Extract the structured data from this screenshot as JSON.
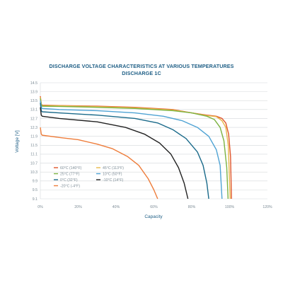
{
  "chart_data": {
    "type": "line",
    "title": "DISCHARGE VOLTAGE CHARACTERISTICS AT VARIOUS TEMPERATURES",
    "subtitle": "DISCHARGE 1C",
    "xlabel": "Capacity",
    "ylabel": "Voltage [V]",
    "xlim": [
      0,
      120
    ],
    "ylim": [
      9.1,
      14.5
    ],
    "x_ticks": [
      0,
      20,
      40,
      60,
      80,
      100,
      120
    ],
    "x_tick_labels": [
      "0%",
      "20%",
      "40%",
      "60%",
      "80%",
      "100%",
      "120%"
    ],
    "y_ticks": [
      9.1,
      9.5,
      9.9,
      10.3,
      10.7,
      11.1,
      11.5,
      11.9,
      12.3,
      12.7,
      13.1,
      13.5,
      13.9,
      14.5
    ],
    "y_tick_labels": [
      "9.1",
      "9.5",
      "9.9",
      "10.3",
      "10.7",
      "11.1",
      "11.5",
      "11.9",
      "12.3",
      "12.7",
      "13.1",
      "13.5",
      "13.9",
      "14.5"
    ],
    "grid": "horizontal",
    "legend_position": "bottom-left-inside",
    "series": [
      {
        "name": "60°C (140°F)",
        "color": "#e0552a",
        "points": [
          [
            0,
            13.7
          ],
          [
            0.5,
            13.35
          ],
          [
            1,
            13.3
          ],
          [
            10,
            13.28
          ],
          [
            30,
            13.25
          ],
          [
            50,
            13.2
          ],
          [
            70,
            13.1
          ],
          [
            80,
            12.95
          ],
          [
            88,
            12.85
          ],
          [
            93,
            12.8
          ],
          [
            96,
            12.7
          ],
          [
            98,
            12.5
          ],
          [
            99.5,
            12.0
          ],
          [
            100.5,
            11.0
          ],
          [
            101,
            9.1
          ]
        ]
      },
      {
        "name": "45°C (113°F)",
        "color": "#e8b84a",
        "points": [
          [
            0,
            13.65
          ],
          [
            0.5,
            13.35
          ],
          [
            1,
            13.28
          ],
          [
            10,
            13.27
          ],
          [
            30,
            13.23
          ],
          [
            50,
            13.18
          ],
          [
            70,
            13.08
          ],
          [
            80,
            12.95
          ],
          [
            88,
            12.83
          ],
          [
            93,
            12.78
          ],
          [
            96,
            12.6
          ],
          [
            98,
            12.3
          ],
          [
            99.3,
            11.5
          ],
          [
            100.3,
            9.1
          ]
        ]
      },
      {
        "name": "25°C (77°F)",
        "color": "#7cb342",
        "points": [
          [
            0,
            13.6
          ],
          [
            0.5,
            13.32
          ],
          [
            1,
            13.25
          ],
          [
            10,
            13.24
          ],
          [
            30,
            13.2
          ],
          [
            50,
            13.15
          ],
          [
            70,
            13.05
          ],
          [
            80,
            12.95
          ],
          [
            88,
            12.8
          ],
          [
            92,
            12.65
          ],
          [
            95,
            12.3
          ],
          [
            97,
            11.7
          ],
          [
            98.5,
            10.5
          ],
          [
            99.2,
            9.1
          ]
        ]
      },
      {
        "name": "10°C (50°F)",
        "color": "#4fa3d4",
        "points": [
          [
            0,
            13.5
          ],
          [
            0.5,
            13.2
          ],
          [
            1,
            13.15
          ],
          [
            10,
            13.1
          ],
          [
            30,
            13.05
          ],
          [
            50,
            12.95
          ],
          [
            65,
            12.8
          ],
          [
            75,
            12.6
          ],
          [
            83,
            12.3
          ],
          [
            89,
            11.9
          ],
          [
            93,
            11.3
          ],
          [
            95,
            10.6
          ],
          [
            96,
            9.1
          ]
        ]
      },
      {
        "name": "0°C (32°F)",
        "color": "#1a6a8a",
        "points": [
          [
            0,
            13.4
          ],
          [
            0.5,
            13.05
          ],
          [
            1,
            13.0
          ],
          [
            10,
            12.95
          ],
          [
            30,
            12.85
          ],
          [
            50,
            12.7
          ],
          [
            62,
            12.5
          ],
          [
            70,
            12.2
          ],
          [
            77,
            11.8
          ],
          [
            83,
            11.2
          ],
          [
            86,
            10.6
          ],
          [
            88,
            9.8
          ],
          [
            89,
            9.1
          ]
        ]
      },
      {
        "name": "-10°C (14°F)",
        "color": "#222222",
        "points": [
          [
            0,
            13.2
          ],
          [
            0.5,
            12.85
          ],
          [
            1,
            12.8
          ],
          [
            10,
            12.7
          ],
          [
            30,
            12.55
          ],
          [
            45,
            12.3
          ],
          [
            55,
            12.0
          ],
          [
            63,
            11.6
          ],
          [
            69,
            11.1
          ],
          [
            73,
            10.5
          ],
          [
            76,
            9.8
          ],
          [
            78,
            9.1
          ]
        ]
      },
      {
        "name": "-20°C (-4°F)",
        "color": "#ee7d3b",
        "points": [
          [
            0,
            12.3
          ],
          [
            0.5,
            12.0
          ],
          [
            1,
            11.95
          ],
          [
            10,
            11.85
          ],
          [
            20,
            11.75
          ],
          [
            30,
            11.55
          ],
          [
            38,
            11.35
          ],
          [
            46,
            11.0
          ],
          [
            52,
            10.6
          ],
          [
            57,
            10.0
          ],
          [
            60,
            9.5
          ],
          [
            62,
            9.1
          ]
        ]
      }
    ]
  }
}
